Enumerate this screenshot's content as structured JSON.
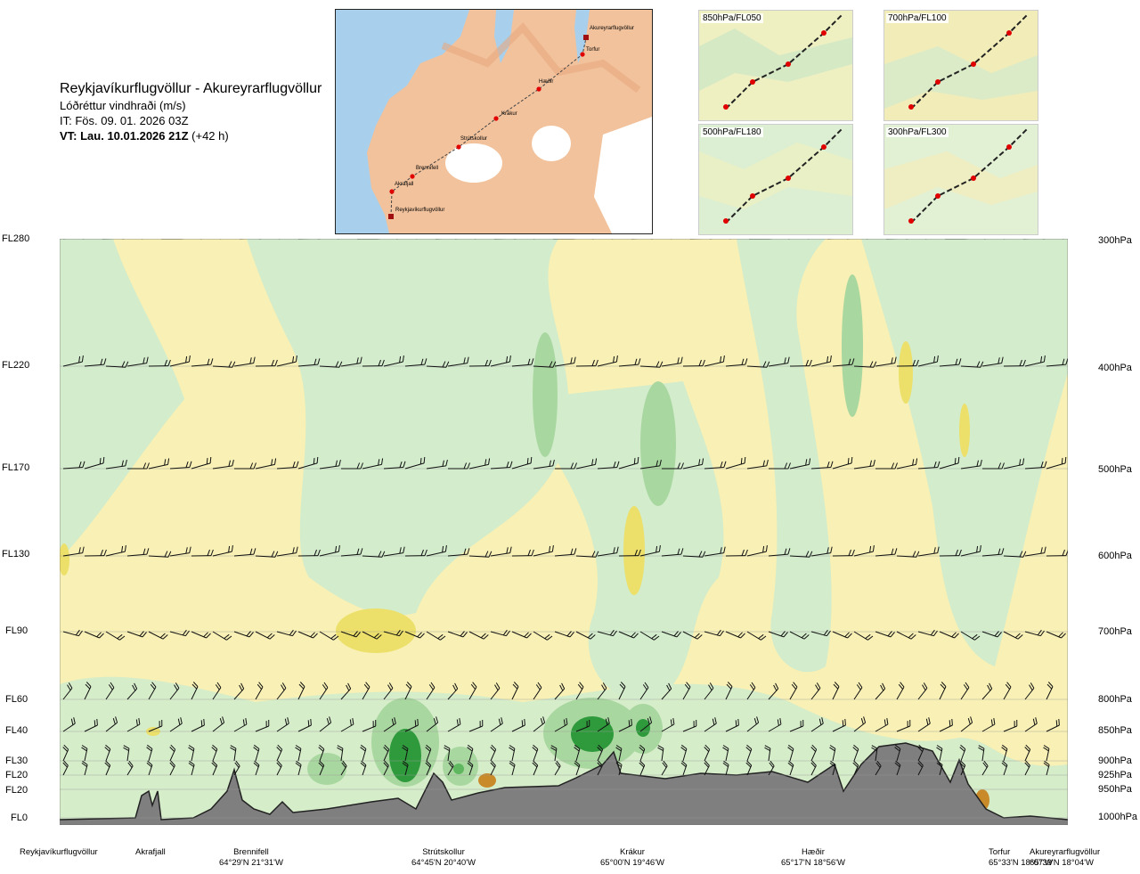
{
  "title": {
    "route": "Reykjavíkurflugvöllur - Akureyrarflugvöllur",
    "parameter": "Lóðréttur vindhraði (m/s)",
    "it": "IT: Fös. 09. 01. 2026 03Z",
    "vt_bold": "VT: Lau. 10.01.2026 21Z",
    "vt_offset": "(+42 h)"
  },
  "map": {
    "points": [
      "Akureyrarflugvöllur",
      "Torfur",
      "Hæðir",
      "Krákur",
      "Strútskollur",
      "Brennifell",
      "Akrafjall",
      "Reykjavíkurflugvöllur"
    ]
  },
  "thumbnails": [
    "850hPa/FL050",
    "700hPa/FL100",
    "500hPa/FL180",
    "300hPa/FL300"
  ],
  "flight_levels": [
    "FL280",
    "FL220",
    "FL170",
    "FL130",
    "FL90",
    "FL60",
    "FL40",
    "FL30",
    "FL20",
    "FL20",
    "FL0"
  ],
  "pressure_levels": [
    "300hPa",
    "400hPa",
    "500hPa",
    "600hPa",
    "700hPa",
    "800hPa",
    "850hPa",
    "900hPa",
    "925hPa",
    "950hPa",
    "1000hPa"
  ],
  "bottom_locations": [
    {
      "name": "Reykjavíkurflugvöllur",
      "coord": ""
    },
    {
      "name": "Akrafjall",
      "coord": ""
    },
    {
      "name": "Brennifell",
      "coord": "64°29'N 21°31'W"
    },
    {
      "name": "Strútskollur",
      "coord": "64°45'N 20°40'W"
    },
    {
      "name": "Krákur",
      "coord": "65°00'N 19°46'W"
    },
    {
      "name": "Hæðir",
      "coord": "65°17'N 18°56'W"
    },
    {
      "name": "Torfur",
      "coord": "65°33'N 18°07'W"
    },
    {
      "name": "Akureyrarflugvöllur",
      "coord": "65°39'N 18°04'W"
    }
  ],
  "colors": {
    "updraft_light": "#d2eccc",
    "updraft_mid": "#a9d7a0",
    "updraft_strong": "#2f9a3c",
    "downdraft_light": "#f8f0b4",
    "downdraft_mid": "#ece06a",
    "downdraft_strong": "#d8c21a",
    "terrain": "#7f7f7f",
    "map_land": "#f2c29c",
    "map_water": "#a8d0ec"
  }
}
